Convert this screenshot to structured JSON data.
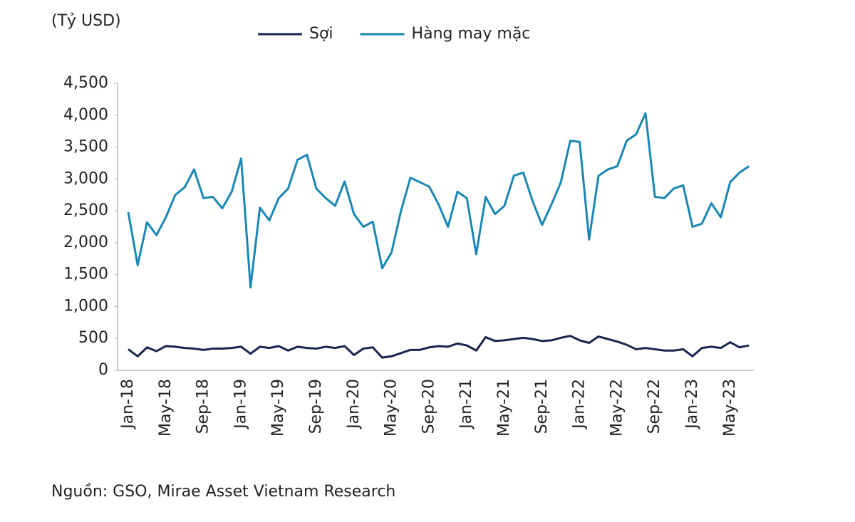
{
  "chart_data": {
    "type": "line",
    "unit_label": "(Tỷ USD)",
    "source": "Nguồn: GSO, Mirae Asset Vietnam Research",
    "categories": [
      "Jan-18",
      null,
      null,
      null,
      "May-18",
      null,
      null,
      null,
      "Sep-18",
      null,
      null,
      null,
      "Jan-19",
      null,
      null,
      null,
      "May-19",
      null,
      null,
      null,
      "Sep-19",
      null,
      null,
      null,
      "Jan-20",
      null,
      null,
      null,
      "May-20",
      null,
      null,
      null,
      "Sep-20",
      null,
      null,
      null,
      "Jan-21",
      null,
      null,
      null,
      "May-21",
      null,
      null,
      null,
      "Sep-21",
      null,
      null,
      null,
      "Jan-22",
      null,
      null,
      null,
      "May-22",
      null,
      null,
      null,
      "Sep-22",
      null,
      null,
      null,
      "Jan-23",
      null,
      null,
      null,
      "May-23",
      null,
      null
    ],
    "series": [
      {
        "name": "Sợi",
        "color": "#17254f",
        "values": [
          330,
          220,
          360,
          300,
          380,
          370,
          350,
          340,
          320,
          340,
          340,
          350,
          370,
          260,
          370,
          350,
          380,
          310,
          370,
          350,
          340,
          370,
          350,
          380,
          240,
          340,
          360,
          200,
          220,
          270,
          320,
          320,
          360,
          380,
          370,
          420,
          390,
          310,
          520,
          460,
          470,
          490,
          510,
          490,
          460,
          470,
          510,
          540,
          470,
          430,
          530,
          490,
          450,
          400,
          330,
          350,
          330,
          310,
          310,
          330,
          220,
          350,
          370,
          350,
          440,
          360,
          390
        ]
      },
      {
        "name": "Hàng may mặc",
        "color": "#1a86b4",
        "values": [
          2480,
          1650,
          2320,
          2120,
          2400,
          2750,
          2870,
          3150,
          2700,
          2720,
          2540,
          2800,
          3320,
          1300,
          2550,
          2350,
          2700,
          2850,
          3300,
          3380,
          2850,
          2700,
          2580,
          2960,
          2450,
          2250,
          2330,
          1600,
          1850,
          2500,
          3020,
          2950,
          2880,
          2600,
          2250,
          2800,
          2700,
          1820,
          2720,
          2450,
          2580,
          3050,
          3100,
          2650,
          2280,
          2600,
          2950,
          3600,
          3580,
          2050,
          3050,
          3150,
          3200,
          3600,
          3700,
          4030,
          2720,
          2700,
          2850,
          2900,
          2250,
          2300,
          2620,
          2400,
          2950,
          3100,
          3200
        ]
      }
    ],
    "ylim": [
      0,
      4500
    ],
    "yticks": [
      0,
      500,
      {
        "value": 1000,
        "label": "1,000"
      },
      {
        "value": 1500,
        "label": "1,500"
      },
      {
        "value": 2000,
        "label": "2,000"
      },
      {
        "value": 2500,
        "label": "2,500"
      },
      {
        "value": 3000,
        "label": "3,000"
      },
      {
        "value": 3500,
        "label": "3,500"
      },
      {
        "value": 4000,
        "label": "4,000"
      },
      {
        "value": 4500,
        "label": "4,500"
      }
    ],
    "legend": "top"
  }
}
